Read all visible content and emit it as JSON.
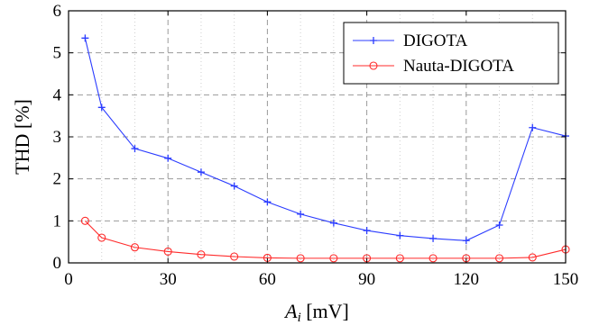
{
  "chart_data": {
    "type": "line",
    "xlabel_main": "A",
    "xlabel_sub": "i",
    "xlabel_unit": " [mV]",
    "ylabel": "THD [%]",
    "xlim": [
      0,
      150
    ],
    "ylim": [
      0,
      6
    ],
    "xticks": [
      0,
      30,
      60,
      90,
      120,
      150
    ],
    "yticks": [
      0,
      1,
      2,
      3,
      4,
      5,
      6
    ],
    "x_minor": [
      10,
      20,
      40,
      50,
      70,
      80,
      100,
      110,
      130,
      140
    ],
    "grid": true,
    "legend_position": "top-right",
    "series": [
      {
        "name": "DIGOTA",
        "color": "#2b3cff",
        "marker": "plus",
        "x": [
          5,
          10,
          20,
          30,
          40,
          50,
          60,
          70,
          80,
          90,
          100,
          110,
          120,
          130,
          140,
          150
        ],
        "y": [
          5.35,
          3.7,
          2.72,
          2.49,
          2.16,
          1.83,
          1.45,
          1.16,
          0.95,
          0.77,
          0.65,
          0.58,
          0.53,
          0.9,
          3.22,
          3.02
        ]
      },
      {
        "name": "Nauta-DIGOTA",
        "color": "#ff2b2b",
        "marker": "circle",
        "x": [
          5,
          10,
          20,
          30,
          40,
          50,
          60,
          70,
          80,
          90,
          100,
          110,
          120,
          130,
          140,
          150
        ],
        "y": [
          1.0,
          0.6,
          0.37,
          0.27,
          0.2,
          0.15,
          0.12,
          0.11,
          0.11,
          0.11,
          0.11,
          0.11,
          0.11,
          0.11,
          0.13,
          0.32
        ]
      }
    ]
  }
}
